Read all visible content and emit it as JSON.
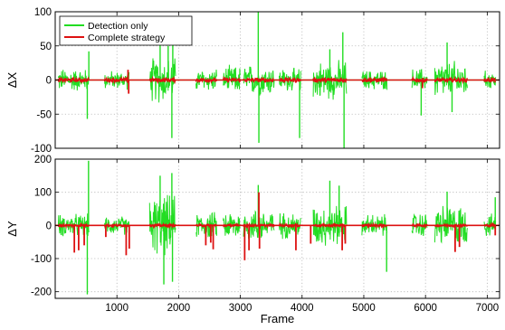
{
  "chart_data": [
    {
      "type": "line",
      "ylabel": "ΔX",
      "xlabel": "",
      "xlim": [
        0,
        7200
      ],
      "ylim": [
        -100,
        100
      ],
      "yticks": [
        -100,
        -50,
        0,
        50,
        100
      ],
      "xticks": [
        1000,
        2000,
        3000,
        4000,
        5000,
        6000,
        7000
      ],
      "show_xtick_labels": false,
      "grid": true,
      "legend_position": "top-left",
      "series": [
        {
          "name": "Detection only",
          "color": "#22dd22",
          "noise_amplitude": 12,
          "segments": [
            {
              "start": 50,
              "end": 550,
              "amp": 15
            },
            {
              "start": 800,
              "end": 1200,
              "amp": 12
            },
            {
              "start": 1530,
              "end": 1950,
              "amp": 30
            },
            {
              "start": 2280,
              "end": 2620,
              "amp": 15
            },
            {
              "start": 2720,
              "end": 3000,
              "amp": 18
            },
            {
              "start": 3050,
              "end": 3550,
              "amp": 20
            },
            {
              "start": 3630,
              "end": 3980,
              "amp": 15
            },
            {
              "start": 4180,
              "end": 4720,
              "amp": 25
            },
            {
              "start": 4970,
              "end": 5380,
              "amp": 13
            },
            {
              "start": 5780,
              "end": 6030,
              "amp": 15
            },
            {
              "start": 6150,
              "end": 6680,
              "amp": 25
            },
            {
              "start": 6950,
              "end": 7140,
              "amp": 12
            }
          ],
          "spikes": [
            {
              "x": 520,
              "y": -57
            },
            {
              "x": 545,
              "y": 42
            },
            {
              "x": 1700,
              "y": 58
            },
            {
              "x": 1830,
              "y": 50
            },
            {
              "x": 1890,
              "y": -85
            },
            {
              "x": 1905,
              "y": 63
            },
            {
              "x": 3290,
              "y": 100
            },
            {
              "x": 3300,
              "y": -92
            },
            {
              "x": 3960,
              "y": -85
            },
            {
              "x": 4450,
              "y": 45
            },
            {
              "x": 4660,
              "y": 70
            },
            {
              "x": 4680,
              "y": -100
            },
            {
              "x": 5930,
              "y": -52
            },
            {
              "x": 6350,
              "y": 55
            },
            {
              "x": 6430,
              "y": -47
            }
          ]
        },
        {
          "name": "Complete strategy",
          "color": "#dd1111",
          "noise_amplitude": 3,
          "segments": [],
          "spikes": [
            {
              "x": 1180,
              "y": 15
            },
            {
              "x": 1190,
              "y": -20
            },
            {
              "x": 5950,
              "y": -12
            }
          ]
        }
      ]
    },
    {
      "type": "line",
      "ylabel": "ΔY",
      "xlabel": "Frame",
      "xlim": [
        0,
        7200
      ],
      "ylim": [
        -220,
        200
      ],
      "yticks": [
        -200,
        -100,
        0,
        100,
        200
      ],
      "xticks": [
        1000,
        2000,
        3000,
        4000,
        5000,
        6000,
        7000
      ],
      "show_xtick_labels": true,
      "grid": true,
      "series": [
        {
          "name": "Detection only",
          "color": "#22dd22",
          "noise_amplitude": 25,
          "segments": [
            {
              "start": 50,
              "end": 550,
              "amp": 30
            },
            {
              "start": 800,
              "end": 1200,
              "amp": 25
            },
            {
              "start": 1530,
              "end": 1950,
              "amp": 80
            },
            {
              "start": 2280,
              "end": 2620,
              "amp": 35
            },
            {
              "start": 2720,
              "end": 3000,
              "amp": 40
            },
            {
              "start": 3050,
              "end": 3550,
              "amp": 45
            },
            {
              "start": 3630,
              "end": 3980,
              "amp": 35
            },
            {
              "start": 4180,
              "end": 4720,
              "amp": 55
            },
            {
              "start": 4970,
              "end": 5380,
              "amp": 30
            },
            {
              "start": 5780,
              "end": 6030,
              "amp": 35
            },
            {
              "start": 6150,
              "end": 6680,
              "amp": 55
            },
            {
              "start": 6950,
              "end": 7140,
              "amp": 30
            }
          ],
          "spikes": [
            {
              "x": 520,
              "y": -208
            },
            {
              "x": 540,
              "y": 195
            },
            {
              "x": 1700,
              "y": 150
            },
            {
              "x": 1760,
              "y": -178
            },
            {
              "x": 1890,
              "y": 158
            },
            {
              "x": 1900,
              "y": -170
            },
            {
              "x": 3290,
              "y": 122
            },
            {
              "x": 4450,
              "y": 135
            },
            {
              "x": 4600,
              "y": 120
            },
            {
              "x": 5370,
              "y": -140
            },
            {
              "x": 6350,
              "y": 102
            },
            {
              "x": 7130,
              "y": 85
            }
          ]
        },
        {
          "name": "Complete strategy",
          "color": "#dd1111",
          "noise_amplitude": 4,
          "segments": [],
          "spikes": [
            {
              "x": 310,
              "y": -82
            },
            {
              "x": 380,
              "y": -75
            },
            {
              "x": 470,
              "y": -60
            },
            {
              "x": 820,
              "y": -35
            },
            {
              "x": 1150,
              "y": -90
            },
            {
              "x": 1200,
              "y": -70
            },
            {
              "x": 2440,
              "y": -60
            },
            {
              "x": 2520,
              "y": -52
            },
            {
              "x": 2560,
              "y": -72
            },
            {
              "x": 3070,
              "y": -105
            },
            {
              "x": 3140,
              "y": -75
            },
            {
              "x": 3300,
              "y": 100
            },
            {
              "x": 3310,
              "y": -70
            },
            {
              "x": 3900,
              "y": -75
            },
            {
              "x": 4140,
              "y": -55
            },
            {
              "x": 4650,
              "y": -75
            },
            {
              "x": 4700,
              "y": -55
            },
            {
              "x": 6480,
              "y": -80
            },
            {
              "x": 6550,
              "y": -65
            },
            {
              "x": 7130,
              "y": -30
            }
          ]
        }
      ]
    }
  ]
}
